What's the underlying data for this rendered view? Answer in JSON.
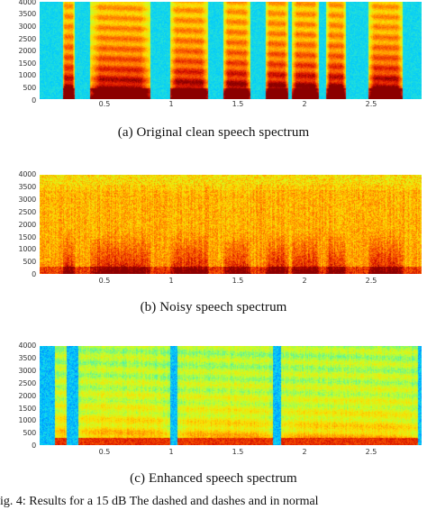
{
  "panels": [
    {
      "id": "a",
      "caption": "(a) Original clean speech spectrum",
      "yticks": [
        "4000",
        "3500",
        "3000",
        "2500",
        "2000",
        "1500",
        "1000",
        "500",
        "0"
      ],
      "xticks": [
        "0.5",
        "1",
        "1.5",
        "2",
        "2.5"
      ],
      "colors": {
        "bg": "#31c0ff",
        "mid": "#ffde00",
        "hot": "#d41000"
      }
    },
    {
      "id": "b",
      "caption": "(b) Noisy speech spectrum",
      "yticks": [
        "4000",
        "3500",
        "3000",
        "2500",
        "2000",
        "1500",
        "1000",
        "500",
        "0"
      ],
      "xticks": [
        "0.5",
        "1",
        "1.5",
        "2",
        "2.5"
      ],
      "colors": {
        "bg": "#ff9a00",
        "mid": "#ffd400",
        "hot": "#c80000"
      }
    },
    {
      "id": "c",
      "caption": "(c) Enhanced speech spectrum",
      "yticks": [
        "4000",
        "3500",
        "3000",
        "2500",
        "2000",
        "1500",
        "1000",
        "500",
        "0"
      ],
      "xticks": [
        "0.5",
        "1",
        "1.5",
        "2",
        "2.5"
      ],
      "colors": {
        "bg": "#9fe07a",
        "mid": "#ffe400",
        "hot": "#d41000"
      }
    }
  ],
  "footer_text": "ig. 4:  Results for a 15 dB  The dashed and dashes and in normal"
}
